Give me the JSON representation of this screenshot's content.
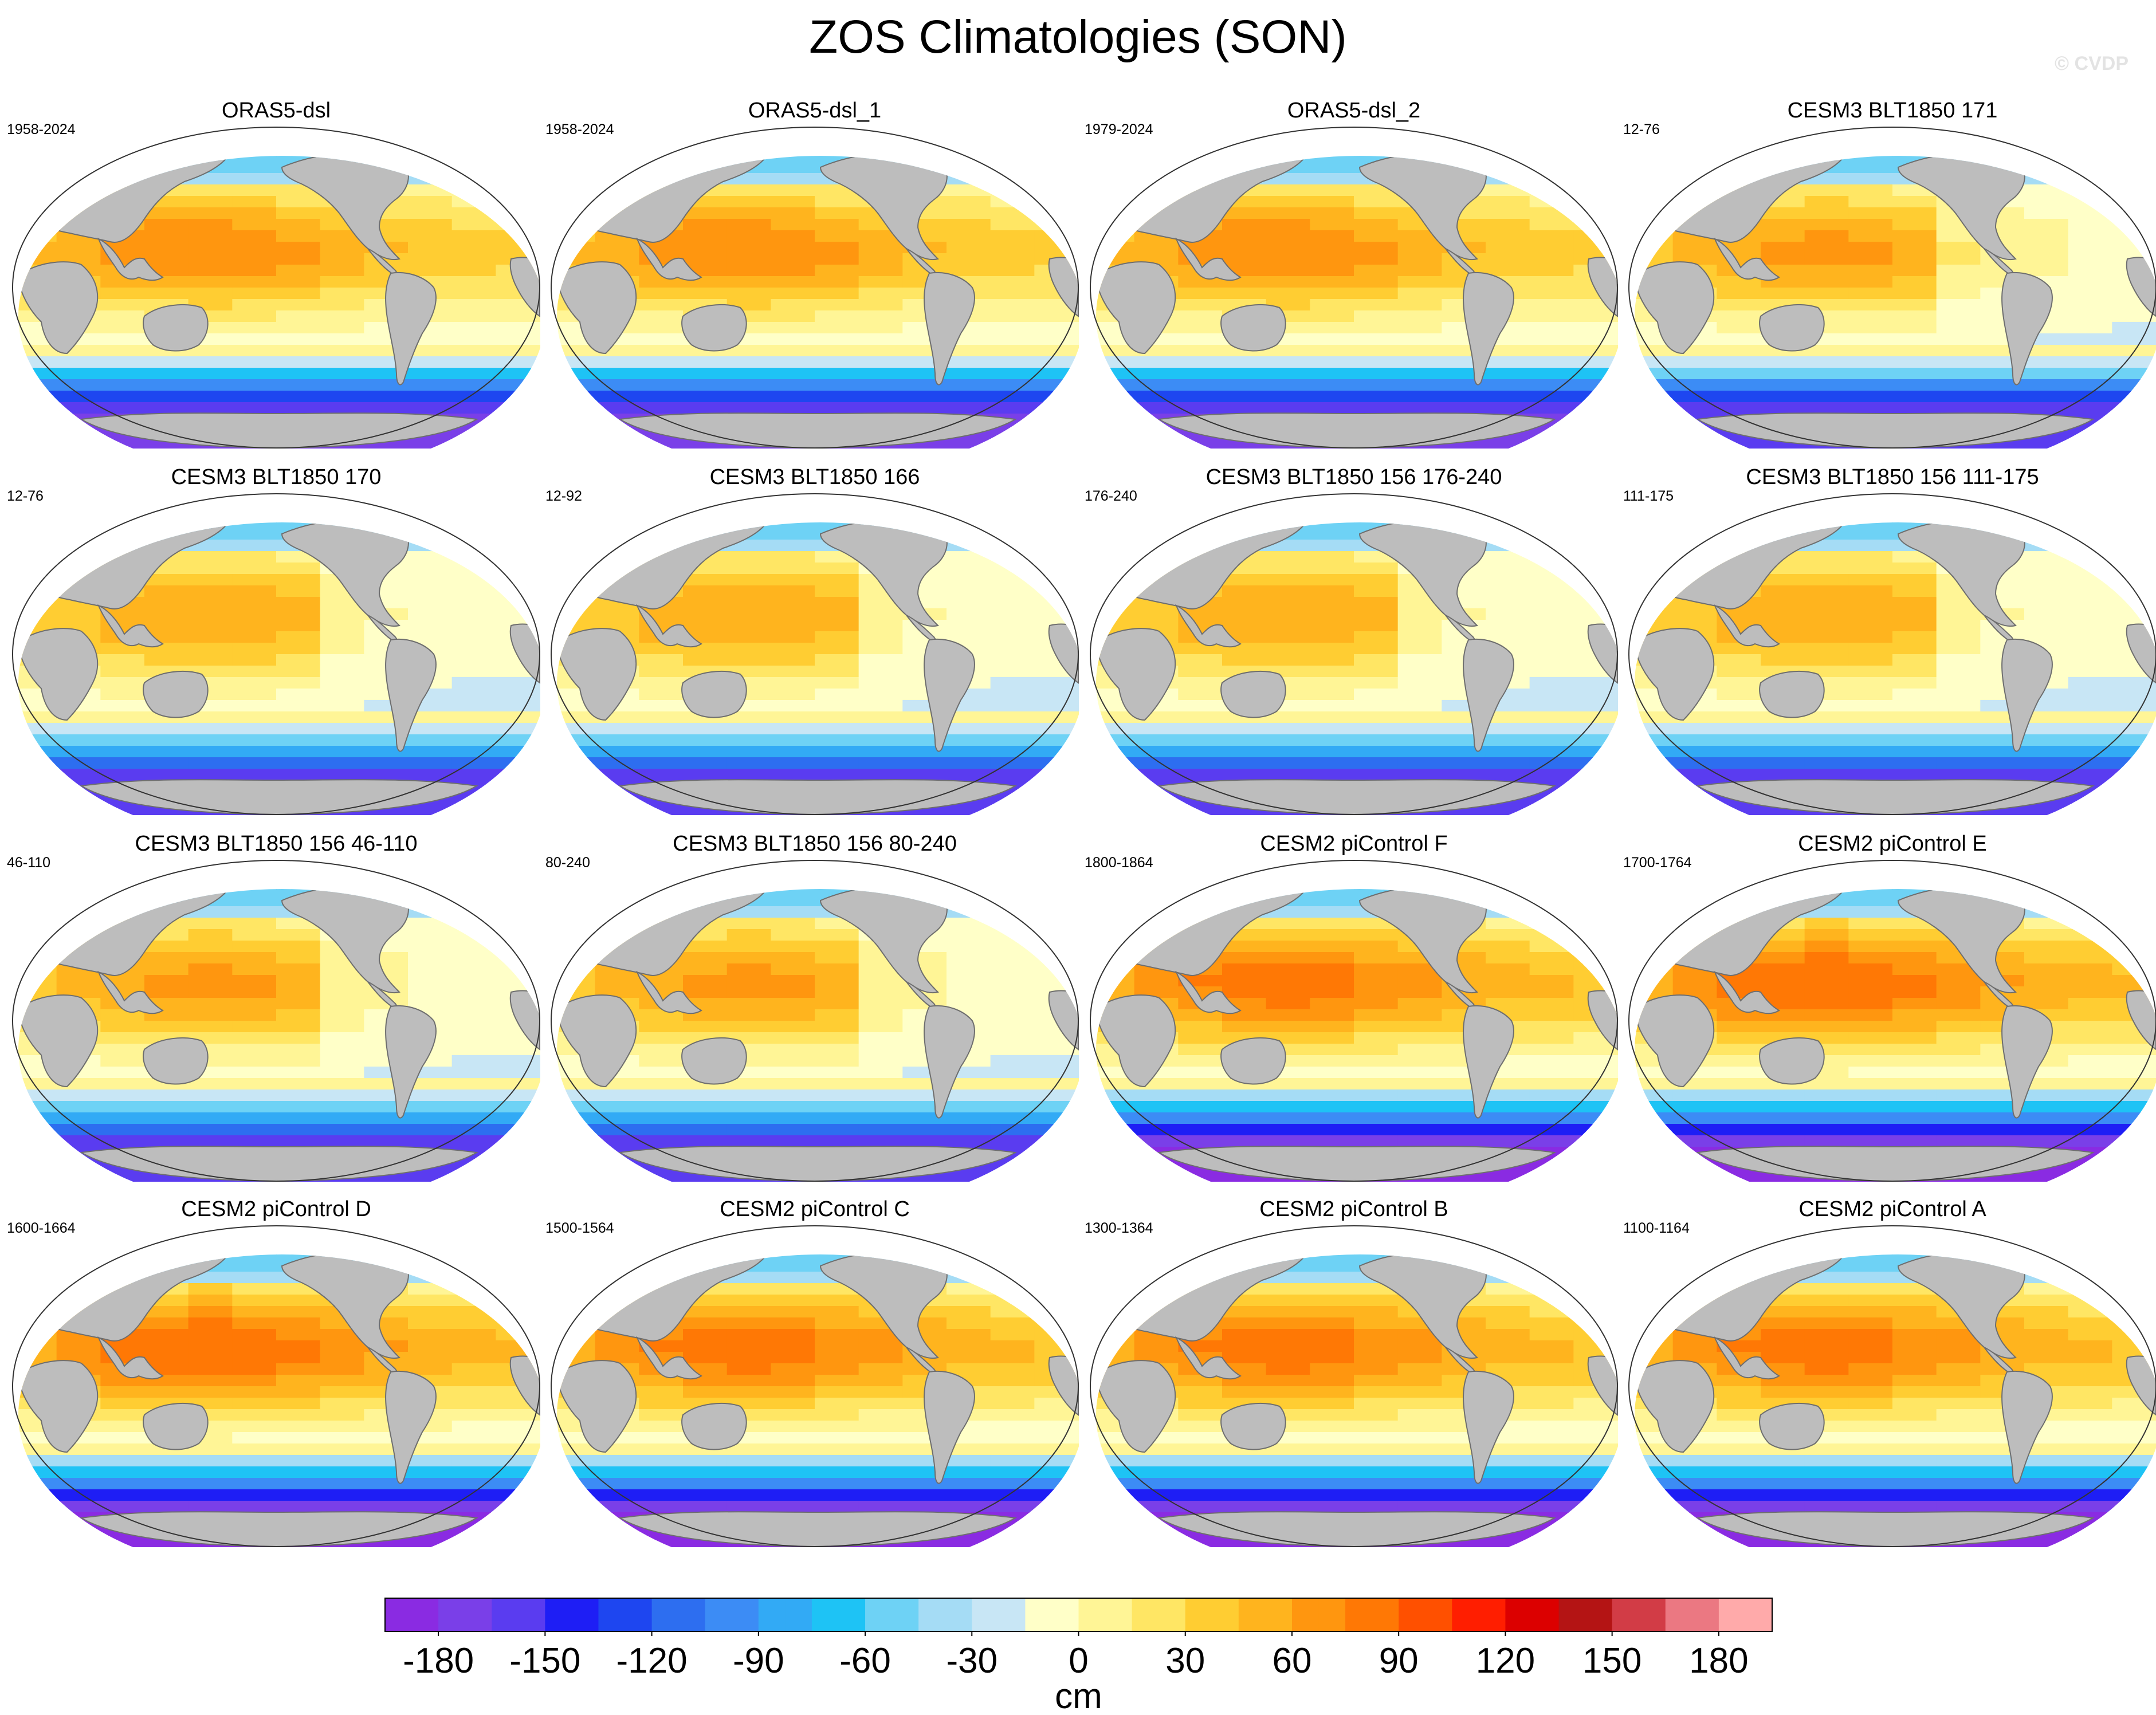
{
  "figure": {
    "title": "ZOS Climatologies (SON)",
    "watermark": "© CVDP"
  },
  "chart_data": {
    "type": "heatmap",
    "title": "ZOS Climatologies (SON)",
    "variable": "ZOS (sea surface height)",
    "season": "SON",
    "units": "cm",
    "projection": "Robinson (Pacific-centred)",
    "colorbar": {
      "label": "cm",
      "min": -195,
      "max": 195,
      "step": 7.5,
      "tick_values": [
        -180,
        -150,
        -120,
        -90,
        -60,
        -30,
        0,
        30,
        60,
        90,
        120,
        150,
        180
      ],
      "tick_labels": [
        "-180",
        "-150",
        "-120",
        "-90",
        "-60",
        "-30",
        "0",
        "30",
        "60",
        "90",
        "120",
        "150",
        "180"
      ]
    },
    "panels": [
      {
        "title": "ORAS5-dsl",
        "period": "1958-2024",
        "max_value": 95,
        "southern_min": -175,
        "east_bias": 0
      },
      {
        "title": "ORAS5-dsl_1",
        "period": "1958-2024",
        "max_value": 95,
        "southern_min": -175,
        "east_bias": 0
      },
      {
        "title": "ORAS5-dsl_2",
        "period": "1979-2024",
        "max_value": 95,
        "southern_min": -175,
        "east_bias": 0
      },
      {
        "title": "CESM3 BLT1850 171",
        "period": "12-76",
        "max_value": 85,
        "southern_min": -165,
        "east_bias": -30
      },
      {
        "title": "CESM3 BLT1850 170",
        "period": "12-76",
        "max_value": 80,
        "southern_min": -160,
        "east_bias": -35
      },
      {
        "title": "CESM3 BLT1850 166",
        "period": "12-92",
        "max_value": 80,
        "southern_min": -160,
        "east_bias": -35
      },
      {
        "title": "CESM3 BLT1850 156 176-240",
        "period": "176-240",
        "max_value": 80,
        "southern_min": -160,
        "east_bias": -35
      },
      {
        "title": "CESM3 BLT1850 156 111-175",
        "period": "111-175",
        "max_value": 80,
        "southern_min": -160,
        "east_bias": -35
      },
      {
        "title": "CESM3 BLT1850 156 46-110",
        "period": "46-110",
        "max_value": 85,
        "southern_min": -160,
        "east_bias": -35
      },
      {
        "title": "CESM3 BLT1850 156 80-240",
        "period": "80-240",
        "max_value": 85,
        "southern_min": -160,
        "east_bias": -35
      },
      {
        "title": "CESM2 piControl F",
        "period": "1800-1864",
        "max_value": 105,
        "southern_min": -190,
        "east_bias": 5
      },
      {
        "title": "CESM2 piControl E",
        "period": "1700-1764",
        "max_value": 110,
        "southern_min": -190,
        "east_bias": 5
      },
      {
        "title": "CESM2 piControl D",
        "period": "1600-1664",
        "max_value": 110,
        "southern_min": -190,
        "east_bias": 5
      },
      {
        "title": "CESM2 piControl C",
        "period": "1500-1564",
        "max_value": 105,
        "southern_min": -190,
        "east_bias": 5
      },
      {
        "title": "CESM2 piControl B",
        "period": "1300-1364",
        "max_value": 105,
        "southern_min": -190,
        "east_bias": 5
      },
      {
        "title": "CESM2 piControl A",
        "period": "1100-1164",
        "max_value": 105,
        "southern_min": -190,
        "east_bias": 5
      }
    ]
  },
  "colors": {
    "land": "#bdbdbd",
    "coast": "#6e6e6e",
    "scale": [
      "#8a2be2",
      "#7a3fe8",
      "#5a3cf0",
      "#1e1ef5",
      "#1e46f0",
      "#2d6ef0",
      "#3c8cf5",
      "#32aaf5",
      "#1ec3f5",
      "#6ed2f5",
      "#a5dcf5",
      "#c8e6f5",
      "#ffffc8",
      "#fff596",
      "#ffe664",
      "#ffcd32",
      "#ffb41e",
      "#ff960f",
      "#ff7805",
      "#ff5000",
      "#ff1e00",
      "#dc0000",
      "#b41414",
      "#d23c46",
      "#eb7882",
      "#ffaaaa"
    ]
  }
}
